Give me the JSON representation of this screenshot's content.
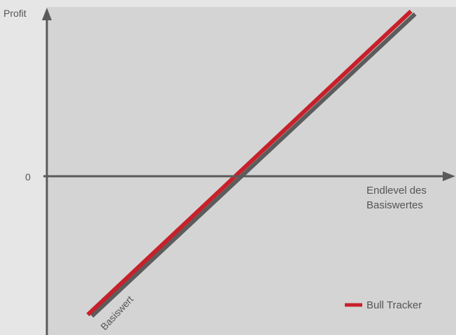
{
  "chart_data": {
    "type": "line",
    "title": "",
    "xlabel": "Endlevel des Basiswertes",
    "xlabel_lines": [
      "Endlevel des",
      "Basiswertes"
    ],
    "ylabel": "Profit",
    "y_tick_labels": [
      "0"
    ],
    "series": [
      {
        "name": "Basiswert",
        "color": "#5c5c5c",
        "points": [
          [
            0.11,
            -1.0
          ],
          [
            0.9,
            1.16
          ]
        ]
      },
      {
        "name": "Bull Tracker",
        "color": "#c8202a",
        "points": [
          [
            0.1,
            -0.99
          ],
          [
            0.89,
            1.18
          ]
        ]
      }
    ],
    "legend": {
      "placement": "bottom-right",
      "entries": [
        "Bull Tracker"
      ]
    },
    "grid": false
  },
  "colors": {
    "page_background": "#e6e6e6",
    "plot_background": "#d4d4d4",
    "axis": "#5a5a5a",
    "text": "#555555"
  }
}
